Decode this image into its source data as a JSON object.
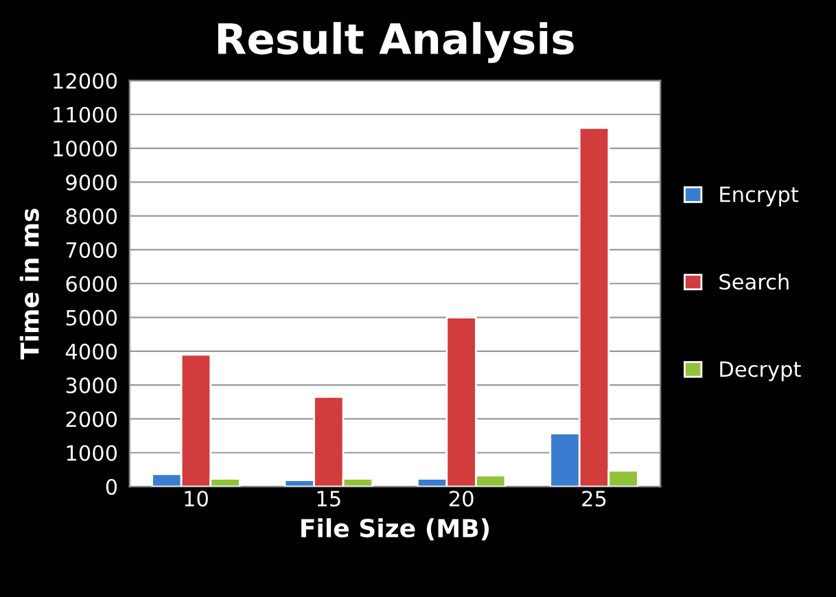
{
  "chart_data": {
    "type": "bar",
    "title": "Result Analysis",
    "xlabel": "File Size (MB)",
    "ylabel": "Time in ms",
    "categories": [
      "10",
      "15",
      "20",
      "25"
    ],
    "series": [
      {
        "name": "Encrypt",
        "color": "#3a7dd0",
        "values": [
          370,
          190,
          230,
          1570
        ]
      },
      {
        "name": "Search",
        "color": "#d23c3c",
        "values": [
          3900,
          2650,
          5000,
          10600
        ]
      },
      {
        "name": "Decrypt",
        "color": "#92c23a",
        "values": [
          230,
          230,
          330,
          470
        ]
      }
    ],
    "ylim": [
      0,
      12000
    ],
    "yticks": [
      0,
      1000,
      2000,
      3000,
      4000,
      5000,
      6000,
      7000,
      8000,
      9000,
      10000,
      11000,
      12000
    ],
    "grid": "y",
    "legend": "right"
  }
}
